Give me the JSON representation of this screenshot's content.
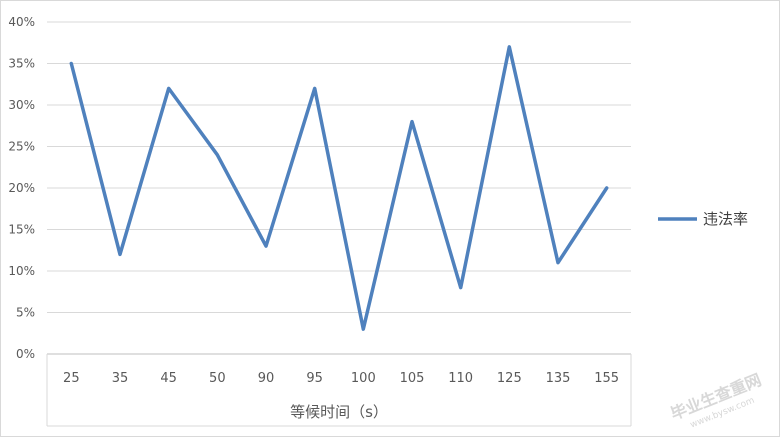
{
  "chart_data": {
    "type": "line",
    "title": "",
    "xlabel": "等候时间（s）",
    "ylabel": "",
    "categories": [
      "25",
      "35",
      "45",
      "50",
      "90",
      "95",
      "100",
      "105",
      "110",
      "125",
      "135",
      "155"
    ],
    "series": [
      {
        "name": "违法率",
        "color": "#4f81bd",
        "values": [
          35,
          12,
          32,
          24,
          13,
          32,
          3,
          28,
          8,
          37,
          11,
          20
        ]
      }
    ],
    "ylim": [
      0,
      40
    ],
    "yticks": [
      "0%",
      "5%",
      "10%",
      "15%",
      "20%",
      "25%",
      "30%",
      "35%",
      "40%"
    ],
    "grid": true,
    "legend_position": "right"
  },
  "watermark": {
    "text": "毕业生查重网",
    "sub": "www.bysw.com"
  }
}
